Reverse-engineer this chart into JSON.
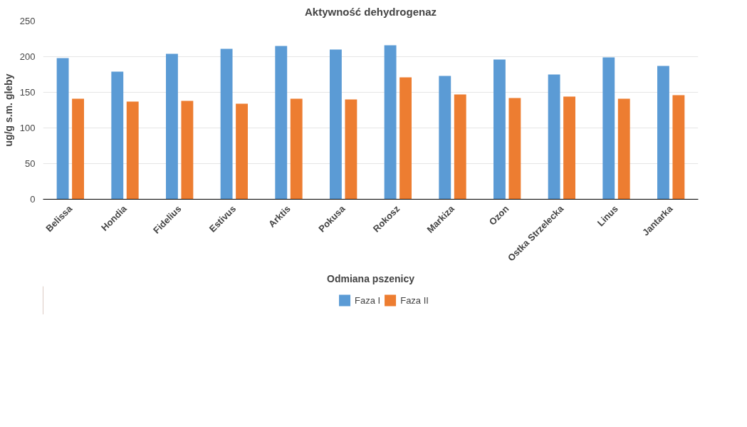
{
  "chart_data": {
    "type": "bar",
    "title": "Aktywność dehydrogenaz",
    "xlabel": "Odmiana pszenicy",
    "ylabel": "ug/g s.m. gleby",
    "categories": [
      "Belissa",
      "Hondia",
      "Fidelius",
      "Estivus",
      "Arktis",
      "Pokusa",
      "Rokosz",
      "Markiza",
      "Ozon",
      "Ostka Strzelecka",
      "Linus",
      "Jantarka"
    ],
    "series": [
      {
        "name": "Faza I",
        "color": "#5b9bd5",
        "values": [
          198,
          179,
          204,
          211,
          215,
          210,
          216,
          173,
          196,
          175,
          199,
          187
        ]
      },
      {
        "name": "Faza II",
        "color": "#ed7d31",
        "values": [
          141,
          137,
          138,
          134,
          141,
          140,
          171,
          147,
          142,
          144,
          141,
          146
        ]
      }
    ],
    "ylim": [
      0,
      250
    ],
    "yticks": [
      0,
      50,
      100,
      150,
      200,
      250
    ],
    "grid": "y",
    "legend": "bottom"
  }
}
